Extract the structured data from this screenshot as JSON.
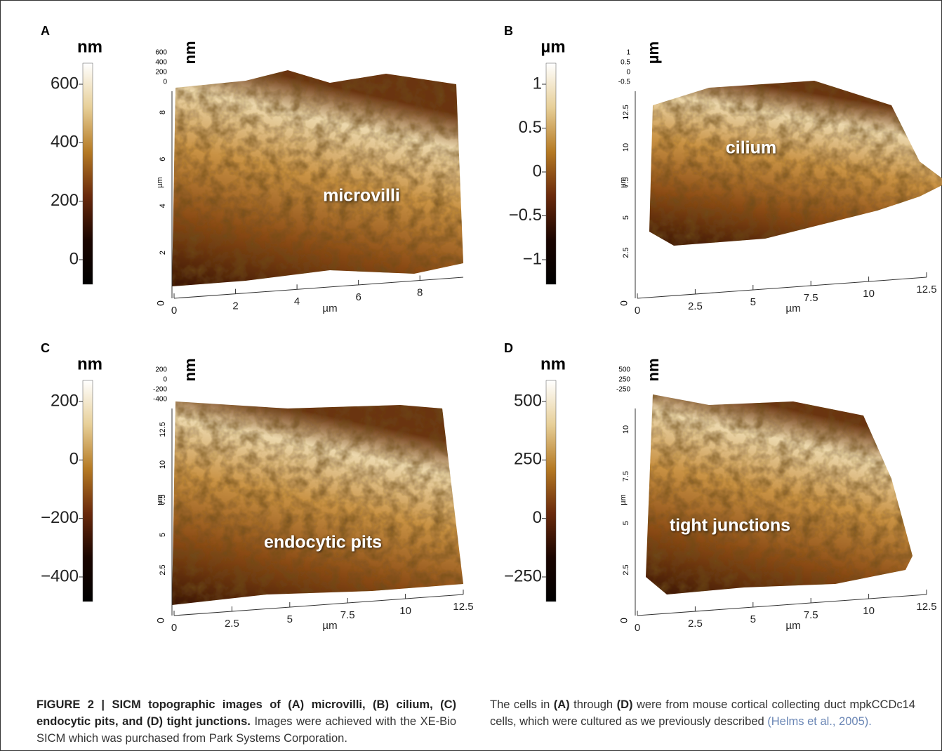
{
  "panels": [
    {
      "label": "A",
      "colorbar_unit": "nm",
      "colorbar_ticks": [
        "600",
        "400",
        "200",
        "0"
      ],
      "z_unit": "nm",
      "z_ticks": [
        "600",
        "400",
        "200",
        "0"
      ],
      "y_unit": "µm",
      "y_ticks": [
        "2",
        "4",
        "6",
        "8"
      ],
      "x_unit": "µm",
      "x_ticks": [
        "0",
        "2",
        "4",
        "6",
        "8"
      ],
      "origin": "0",
      "annotation": "microvilli"
    },
    {
      "label": "B",
      "colorbar_unit": "µm",
      "colorbar_ticks": [
        "1",
        "0.5",
        "0",
        "−0.5",
        "−1"
      ],
      "z_unit": "µm",
      "z_ticks": [
        "1",
        "0.5",
        "0",
        "-0.5"
      ],
      "y_unit": "µm",
      "y_ticks": [
        "2.5",
        "5",
        "7.5",
        "10",
        "12.5"
      ],
      "x_unit": "µm",
      "x_ticks": [
        "0",
        "2.5",
        "5",
        "7.5",
        "10",
        "12.5"
      ],
      "origin": "0",
      "annotation": "cilium"
    },
    {
      "label": "C",
      "colorbar_unit": "nm",
      "colorbar_ticks": [
        "200",
        "0",
        "−200",
        "−400"
      ],
      "z_unit": "nm",
      "z_ticks": [
        "200",
        "0",
        "-200",
        "-400"
      ],
      "y_unit": "µm",
      "y_ticks": [
        "2.5",
        "5",
        "7.5",
        "10",
        "12.5"
      ],
      "x_unit": "µm",
      "x_ticks": [
        "0",
        "2.5",
        "5",
        "7.5",
        "10",
        "12.5"
      ],
      "origin": "0",
      "annotation": "endocytic pits"
    },
    {
      "label": "D",
      "colorbar_unit": "nm",
      "colorbar_ticks": [
        "500",
        "250",
        "0",
        "−250"
      ],
      "z_unit": "nm",
      "z_ticks": [
        "500",
        "250",
        "-250"
      ],
      "y_unit": "µm",
      "y_ticks": [
        "2.5",
        "5",
        "7.5",
        "10"
      ],
      "x_unit": "µm",
      "x_ticks": [
        "0",
        "2.5",
        "5",
        "7.5",
        "10",
        "12.5"
      ],
      "origin": "0",
      "annotation": "tight junctions"
    }
  ],
  "caption": {
    "left_bold": "FIGURE 2 | SICM topographic images of (A) microvilli, (B) cilium, (C) endocytic pits, and (D) tight junctions.",
    "left_text": " Images were achieved with the XE-Bio SICM which was purchased from Park Systems Corporation.",
    "right_parts": [
      "The cells in ",
      "(A)",
      " through ",
      "(D)",
      " were from mouse cortical collecting duct mpkCCDc14 cells, which were cultured as we previously described ",
      "(",
      "Helms et al., 2005",
      ")."
    ]
  }
}
